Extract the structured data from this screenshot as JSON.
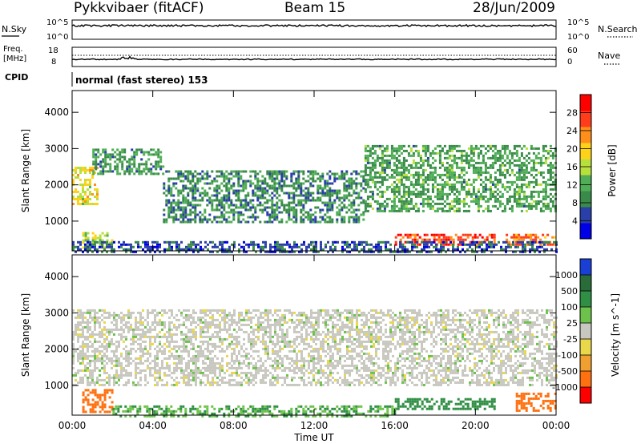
{
  "header": {
    "station": "Pykkvibaer (fitACF)",
    "beam": "Beam 15",
    "date": "28/Jun/2009"
  },
  "noise_panel": {
    "left_label": "N.Sky",
    "right_label": "N.Search",
    "left_ticks": [
      "10^5",
      "10^0"
    ],
    "right_ticks": [
      "10^5",
      "10^0"
    ]
  },
  "freq_panel": {
    "left_label_1": "Freq.",
    "left_label_2": "[MHz]",
    "right_label": "Nave",
    "left_ticks": [
      "18",
      "8"
    ],
    "right_ticks": [
      "60",
      "0"
    ]
  },
  "cpid": {
    "label": "CPID",
    "mode_text": "normal (fast stereo) 153"
  },
  "colors": {
    "power_scale": [
      "#0000e6",
      "#2a3fa8",
      "#3a8a4a",
      "#4fae56",
      "#b8e03c",
      "#ffd21a",
      "#ff8f1a",
      "#ff3d1a",
      "#ff0000"
    ],
    "velocity_scale": [
      "#1a3fd6",
      "#2a6b3a",
      "#2f8f44",
      "#6cc24a",
      "#c8c8c0",
      "#e8d84a",
      "#f0a030",
      "#ff7010",
      "#ff0000"
    ]
  },
  "chart_data": [
    {
      "type": "heatmap",
      "title": "",
      "xlabel": "",
      "ylabel": "Slant Range [km]",
      "x_ticks": [
        "00:00",
        "04:00",
        "08:00",
        "12:00",
        "16:00",
        "20:00",
        "00:00"
      ],
      "y_ticks": [
        1000,
        2000,
        3000,
        4000
      ],
      "ylim": [
        180,
        4600
      ],
      "colorbar": {
        "label": "Power [dB]",
        "ticks": [
          4,
          8,
          12,
          16,
          20,
          24,
          28
        ],
        "range": [
          0,
          32
        ]
      },
      "features": [
        {
          "hour_start": 0.0,
          "hour_end": 1.2,
          "range_start": 1500,
          "range_end": 2500,
          "power": 18
        },
        {
          "hour_start": 1.0,
          "hour_end": 4.5,
          "range_start": 2300,
          "range_end": 3000,
          "power": 10
        },
        {
          "hour_start": 4.5,
          "hour_end": 14.5,
          "range_start": 1000,
          "range_end": 2400,
          "power": 9
        },
        {
          "hour_start": 14.5,
          "hour_end": 24.0,
          "range_start": 1300,
          "range_end": 3100,
          "power": 11
        },
        {
          "hour_start": 16.0,
          "hour_end": 21.0,
          "range_start": 350,
          "range_end": 650,
          "power": 27
        },
        {
          "hour_start": 21.5,
          "hour_end": 24.0,
          "range_start": 350,
          "range_end": 650,
          "power": 24
        },
        {
          "hour_start": 0.5,
          "hour_end": 2.0,
          "range_start": 300,
          "range_end": 700,
          "power": 16
        },
        {
          "hour_start": 0.0,
          "hour_end": 24.0,
          "range_start": 180,
          "range_end": 450,
          "power": 6
        }
      ]
    },
    {
      "type": "heatmap",
      "title": "",
      "xlabel": "Time UT",
      "ylabel": "Slant Range [km]",
      "x_ticks": [
        "00:00",
        "04:00",
        "08:00",
        "12:00",
        "16:00",
        "20:00",
        "00:00"
      ],
      "y_ticks": [
        1000,
        2000,
        3000,
        4000
      ],
      "ylim": [
        180,
        4600
      ],
      "colorbar": {
        "label": "Velocity [m s^-1]",
        "ticks": [
          1000,
          500,
          100,
          25,
          -25,
          -100,
          -500,
          -1000
        ]
      },
      "features": [
        {
          "hour_start": 0.0,
          "hour_end": 24.0,
          "range_start": 1000,
          "range_end": 3100,
          "velocity": 0
        },
        {
          "hour_start": 16.0,
          "hour_end": 21.0,
          "range_start": 350,
          "range_end": 650,
          "velocity": 200
        },
        {
          "hour_start": 0.5,
          "hour_end": 2.0,
          "range_start": 300,
          "range_end": 900,
          "velocity": -300
        },
        {
          "hour_start": 22.0,
          "hour_end": 24.0,
          "range_start": 300,
          "range_end": 800,
          "velocity": -300
        },
        {
          "hour_start": 2.0,
          "hour_end": 16.0,
          "range_start": 180,
          "range_end": 450,
          "velocity": 60
        }
      ]
    }
  ]
}
